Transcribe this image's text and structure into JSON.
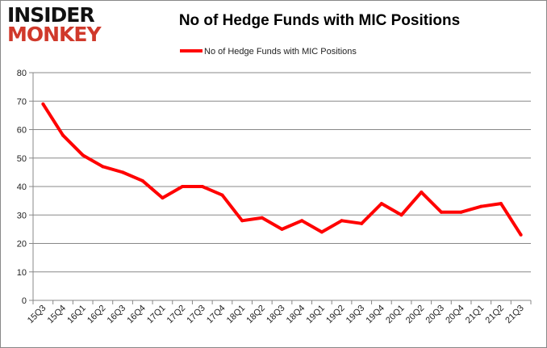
{
  "logo": {
    "line1": "INSIDER",
    "line2": "MONKEY"
  },
  "chart_data": {
    "type": "line",
    "title": "No of Hedge Funds with MIC Positions",
    "xlabel": "",
    "ylabel": "",
    "ylim": [
      0,
      80
    ],
    "yticks": [
      0,
      10,
      20,
      30,
      40,
      50,
      60,
      70,
      80
    ],
    "grid": true,
    "legend": "top-center",
    "categories": [
      "15Q3",
      "15Q4",
      "16Q1",
      "16Q2",
      "16Q3",
      "16Q4",
      "17Q1",
      "17Q2",
      "17Q3",
      "17Q4",
      "18Q1",
      "18Q2",
      "18Q3",
      "18Q4",
      "19Q1",
      "19Q2",
      "19Q3",
      "19Q4",
      "20Q1",
      "20Q2",
      "20Q3",
      "20Q4",
      "21Q1",
      "21Q2",
      "21Q3"
    ],
    "series": [
      {
        "name": "No of Hedge Funds with MIC Positions",
        "color": "#ff0000",
        "values": [
          69,
          58,
          51,
          47,
          45,
          42,
          36,
          40,
          40,
          37,
          28,
          29,
          25,
          28,
          24,
          28,
          27,
          34,
          30,
          38,
          31,
          31,
          33,
          34,
          23
        ]
      }
    ]
  }
}
